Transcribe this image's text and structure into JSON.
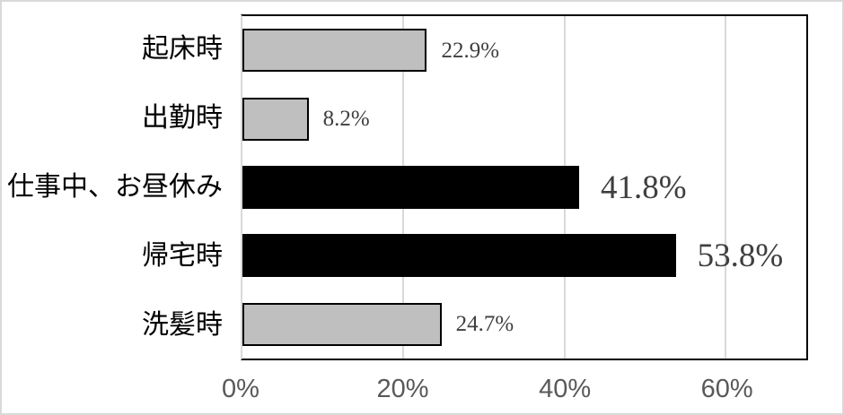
{
  "chart_data": {
    "type": "bar",
    "orientation": "horizontal",
    "title": "",
    "categories": [
      "起床時",
      "出勤時",
      "仕事中、お昼休み",
      "帰宅時",
      "洗髪時"
    ],
    "values": [
      22.9,
      8.2,
      41.8,
      53.8,
      24.7
    ],
    "value_labels": [
      "22.9%",
      "8.2%",
      "41.8%",
      "53.8%",
      "24.7%"
    ],
    "emphasized": [
      false,
      false,
      true,
      true,
      false
    ],
    "bar_colors": [
      "#bfbfbf",
      "#bfbfbf",
      "#000000",
      "#000000",
      "#bfbfbf"
    ],
    "x_ticks": [
      {
        "label": "0%",
        "value": 0
      },
      {
        "label": "20%",
        "value": 20
      },
      {
        "label": "40%",
        "value": 40
      },
      {
        "label": "60%",
        "value": 60
      }
    ],
    "gridline_values": [
      20,
      40,
      60
    ],
    "xlim": [
      0,
      70
    ],
    "grid": true,
    "legend": null
  },
  "colors": {
    "bar_gray": "#bfbfbf",
    "bar_black": "#000000",
    "bar_border": "#000000",
    "gridline": "#d9d9d9",
    "plot_border": "#000000",
    "axis_line": "#d9d9d9",
    "canvas_border": "#d9d9d9",
    "tick_text": "#595959",
    "value_text": "#3f3f3f",
    "category_text": "#000000",
    "background": "#ffffff"
  }
}
